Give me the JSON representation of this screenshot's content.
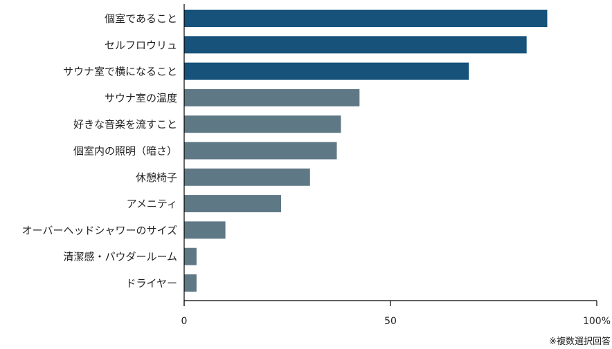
{
  "chart_data": {
    "type": "bar",
    "orientation": "horizontal",
    "title": "",
    "xlabel": "",
    "ylabel": "",
    "xlim": [
      0,
      100
    ],
    "ticks": [
      {
        "value": 0,
        "label": "0"
      },
      {
        "value": 50,
        "label": "50"
      },
      {
        "value": 100,
        "label": "100%"
      }
    ],
    "grid": false,
    "categories": [
      "個室であること",
      "セルフロウリュ",
      "サウナ室で横になること",
      "サウナ室の温度",
      "好きな音楽を流すこと",
      "個室内の照明（暗さ）",
      "休憩椅子",
      "アメニティ",
      "オーバーヘッドシャワーのサイズ",
      "清潔感・パウダールーム",
      "ドライヤー"
    ],
    "values": [
      88,
      83,
      69,
      42.5,
      38,
      37,
      30.5,
      23.5,
      10,
      3,
      3
    ],
    "highlight_count": 3,
    "colors": {
      "highlight": "#16527a",
      "normal": "#5f7885",
      "axis": "#000000"
    },
    "note": "※複数選択回答"
  }
}
